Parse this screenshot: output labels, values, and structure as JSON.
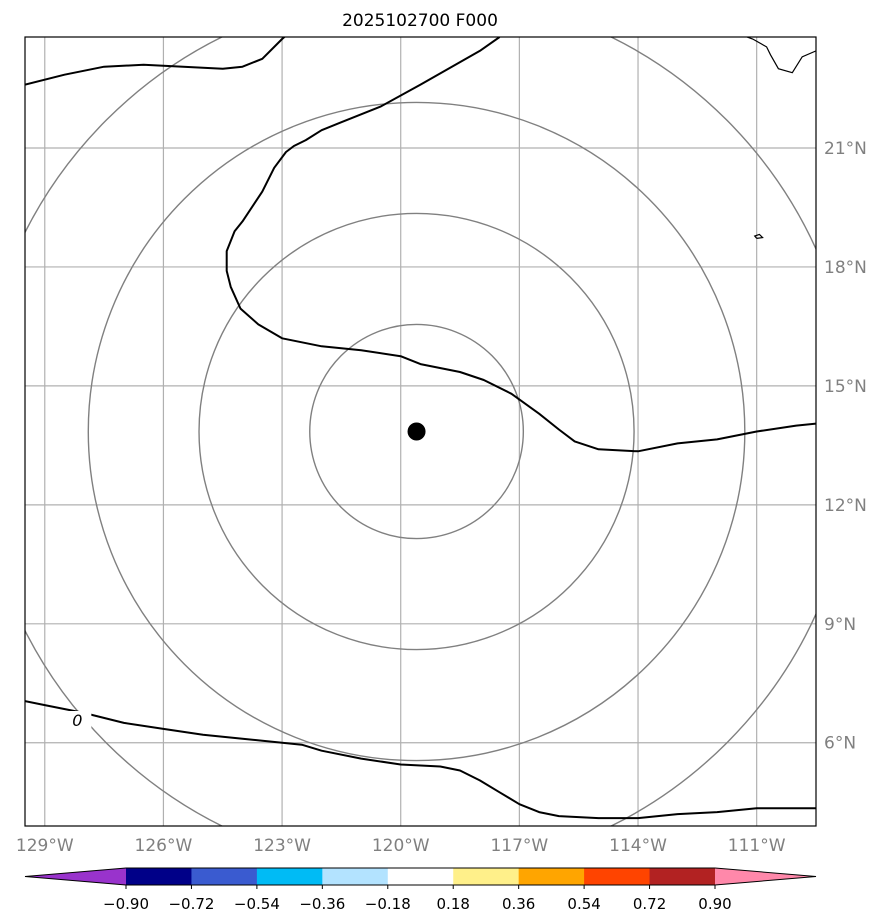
{
  "title": "2025102700 F000",
  "map": {
    "lon_range": [
      -129.5,
      -109.5
    ],
    "lat_range": [
      3.9,
      23.8
    ],
    "lon_ticks": [
      {
        "value": -129,
        "label": "129°W"
      },
      {
        "value": -126,
        "label": "126°W"
      },
      {
        "value": -123,
        "label": "123°W"
      },
      {
        "value": -120,
        "label": "120°W"
      },
      {
        "value": -117,
        "label": "117°W"
      },
      {
        "value": -114,
        "label": "114°W"
      },
      {
        "value": -111,
        "label": "111°W"
      }
    ],
    "lat_ticks": [
      {
        "value": 6,
        "label": "6°N"
      },
      {
        "value": 9,
        "label": "9°N"
      },
      {
        "value": 12,
        "label": "12°N"
      },
      {
        "value": 15,
        "label": "15°N"
      },
      {
        "value": 18,
        "label": "18°N"
      },
      {
        "value": 21,
        "label": "21°N"
      }
    ],
    "center": {
      "lon": -119.6,
      "lat": 13.85
    },
    "range_rings_deg": [
      2.7,
      5.5,
      8.3,
      11.1
    ],
    "contour_label": "0",
    "contours": [
      [
        [
          -129.5,
          22.6
        ],
        [
          -128.5,
          22.85
        ],
        [
          -127.5,
          23.05
        ],
        [
          -126.5,
          23.1
        ],
        [
          -125.5,
          23.05
        ],
        [
          -124.5,
          23.0
        ],
        [
          -124,
          23.05
        ],
        [
          -123.5,
          23.25
        ],
        [
          -123.0,
          23.75
        ],
        [
          -122.6,
          24.1
        ]
      ],
      [
        [
          -117.5,
          23.8
        ],
        [
          -118.0,
          23.45
        ],
        [
          -119.5,
          22.6
        ],
        [
          -120.5,
          22.05
        ],
        [
          -121.5,
          21.65
        ],
        [
          -122.0,
          21.45
        ],
        [
          -122.4,
          21.2
        ],
        [
          -122.7,
          21.05
        ],
        [
          -122.9,
          20.9
        ],
        [
          -123.2,
          20.5
        ],
        [
          -123.5,
          19.9
        ],
        [
          -124.0,
          19.15
        ],
        [
          -124.2,
          18.9
        ],
        [
          -124.4,
          18.4
        ],
        [
          -124.4,
          17.9
        ],
        [
          -124.3,
          17.5
        ],
        [
          -124.05,
          16.95
        ],
        [
          -123.6,
          16.55
        ],
        [
          -123.0,
          16.2
        ],
        [
          -122.0,
          16.0
        ],
        [
          -121.0,
          15.9
        ],
        [
          -120.0,
          15.75
        ],
        [
          -119.5,
          15.55
        ],
        [
          -118.5,
          15.35
        ],
        [
          -117.9,
          15.15
        ],
        [
          -117.2,
          14.8
        ],
        [
          -116.5,
          14.3
        ],
        [
          -116.0,
          13.9
        ],
        [
          -115.6,
          13.6
        ],
        [
          -115.0,
          13.4
        ],
        [
          -114.0,
          13.35
        ],
        [
          -113.0,
          13.55
        ],
        [
          -112.0,
          13.65
        ],
        [
          -111.0,
          13.85
        ],
        [
          -110.0,
          14.0
        ],
        [
          -109.5,
          14.05
        ]
      ],
      [
        [
          -129.5,
          7.05
        ],
        [
          -129.0,
          6.95
        ],
        [
          -128.0,
          6.75
        ],
        [
          -127.0,
          6.5
        ],
        [
          -126.0,
          6.35
        ],
        [
          -125.0,
          6.2
        ],
        [
          -124.0,
          6.1
        ],
        [
          -123.0,
          6.0
        ],
        [
          -122.5,
          5.95
        ],
        [
          -122.0,
          5.8
        ],
        [
          -121.0,
          5.6
        ],
        [
          -120.0,
          5.45
        ],
        [
          -119.0,
          5.4
        ],
        [
          -118.5,
          5.3
        ],
        [
          -118.0,
          5.05
        ],
        [
          -117.5,
          4.75
        ],
        [
          -117.0,
          4.45
        ],
        [
          -116.5,
          4.25
        ],
        [
          -116.0,
          4.15
        ],
        [
          -115.0,
          4.1
        ],
        [
          -114.0,
          4.1
        ],
        [
          -113.0,
          4.2
        ],
        [
          -112.0,
          4.25
        ],
        [
          -111.0,
          4.35
        ],
        [
          -110.0,
          4.35
        ],
        [
          -109.5,
          4.35
        ]
      ]
    ],
    "coastlines": [
      [
        [
          -109.5,
          23.45
        ],
        [
          -109.85,
          23.3
        ],
        [
          -110.1,
          22.9
        ],
        [
          -110.45,
          23.0
        ],
        [
          -110.65,
          23.35
        ],
        [
          -110.75,
          23.55
        ],
        [
          -111.1,
          23.75
        ],
        [
          -111.3,
          23.82
        ]
      ],
      [
        [
          -111.0,
          18.72
        ],
        [
          -110.85,
          18.74
        ],
        [
          -110.93,
          18.82
        ],
        [
          -111.05,
          18.78
        ],
        [
          -111.0,
          18.72
        ]
      ]
    ]
  },
  "colorbar": {
    "colors": [
      "#9933cc",
      "#000088",
      "#3a5bd0",
      "#00bbf5",
      "#b3e3ff",
      "#ffffff",
      "#fff08a",
      "#ffa500",
      "#ff4400",
      "#b22222",
      "#ff88aa"
    ],
    "tick_labels": [
      "−0.90",
      "−0.72",
      "−0.54",
      "−0.36",
      "−0.18",
      "0.18",
      "0.36",
      "0.54",
      "0.72",
      "0.90"
    ]
  }
}
